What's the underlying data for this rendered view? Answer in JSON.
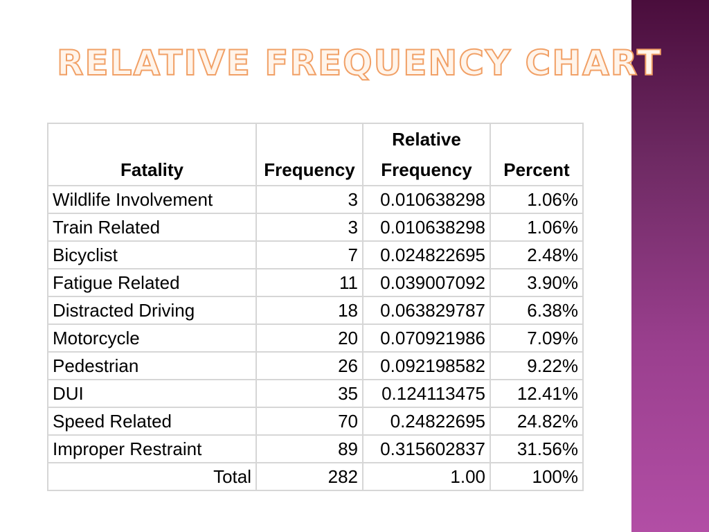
{
  "title": "Relative Frequency Chart",
  "table": {
    "headers": {
      "fatality": "Fatality",
      "frequency": "Frequency",
      "relative_line1": "Relative",
      "relative_line2": "Frequency",
      "percent": "Percent"
    },
    "rows": [
      {
        "fatality": "Wildlife Involvement",
        "frequency": "3",
        "relative": "0.010638298",
        "percent": "1.06%"
      },
      {
        "fatality": "Train Related",
        "frequency": "3",
        "relative": "0.010638298",
        "percent": "1.06%"
      },
      {
        "fatality": "Bicyclist",
        "frequency": "7",
        "relative": "0.024822695",
        "percent": "2.48%"
      },
      {
        "fatality": "Fatigue Related",
        "frequency": "11",
        "relative": "0.039007092",
        "percent": "3.90%"
      },
      {
        "fatality": "Distracted Driving",
        "frequency": "18",
        "relative": "0.063829787",
        "percent": "6.38%"
      },
      {
        "fatality": "Motorcycle",
        "frequency": "20",
        "relative": "0.070921986",
        "percent": "7.09%"
      },
      {
        "fatality": "Pedestrian",
        "frequency": "26",
        "relative": "0.092198582",
        "percent": "9.22%"
      },
      {
        "fatality": "DUI",
        "frequency": "35",
        "relative": "0.124113475",
        "percent": "12.41%"
      },
      {
        "fatality": "Speed Related",
        "frequency": "70",
        "relative": "0.24822695",
        "percent": "24.82%"
      },
      {
        "fatality": "Improper Restraint",
        "frequency": "89",
        "relative": "0.315602837",
        "percent": "31.56%"
      }
    ],
    "total": {
      "label": "Total",
      "frequency": "282",
      "relative": "1.00",
      "percent": "100%"
    }
  },
  "colors": {
    "title_outline": "#f1a066",
    "side_band_top": "#4a0d3c",
    "side_band_bottom": "#b24ea5",
    "grid": "#d6d6d6"
  }
}
